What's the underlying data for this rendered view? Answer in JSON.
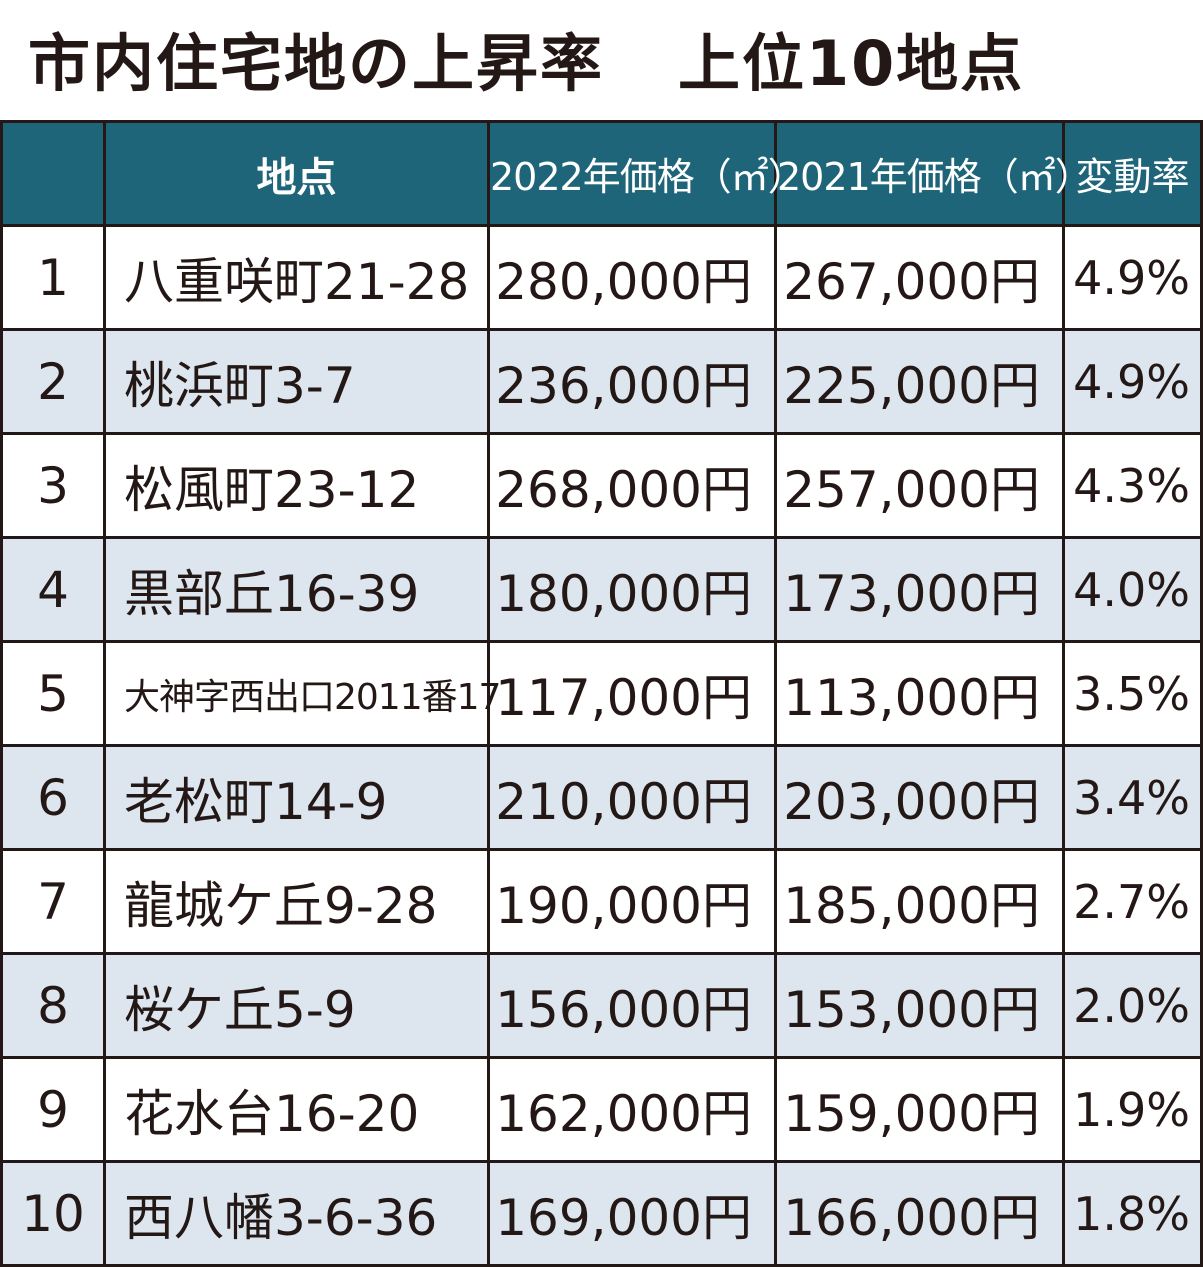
{
  "title_main": "市内住宅地の上昇率",
  "title_sub": "上位10地点",
  "chart_data": {
    "type": "table",
    "columns": [
      "",
      "地点",
      "2022年価格（㎡）",
      "2021年価格（㎡）",
      "変動率"
    ],
    "rows": [
      {
        "rank": "1",
        "location": "八重咲町21-28",
        "price_2022": "280,000円",
        "price_2021": "267,000円",
        "rate": "4.9%"
      },
      {
        "rank": "2",
        "location": "桃浜町3-7",
        "price_2022": "236,000円",
        "price_2021": "225,000円",
        "rate": "4.9%"
      },
      {
        "rank": "3",
        "location": "松風町23-12",
        "price_2022": "268,000円",
        "price_2021": "257,000円",
        "rate": "4.3%"
      },
      {
        "rank": "4",
        "location": "黒部丘16-39",
        "price_2022": "180,000円",
        "price_2021": "173,000円",
        "rate": "4.0%"
      },
      {
        "rank": "5",
        "location": "大神字西出口2011番17",
        "price_2022": "117,000円",
        "price_2021": "113,000円",
        "rate": "3.5%"
      },
      {
        "rank": "6",
        "location": "老松町14-9",
        "price_2022": "210,000円",
        "price_2021": "203,000円",
        "rate": "3.4%"
      },
      {
        "rank": "7",
        "location": "龍城ケ丘9-28",
        "price_2022": "190,000円",
        "price_2021": "185,000円",
        "rate": "2.7%"
      },
      {
        "rank": "8",
        "location": "桜ケ丘5-9",
        "price_2022": "156,000円",
        "price_2021": "153,000円",
        "rate": "2.0%"
      },
      {
        "rank": "9",
        "location": "花水台16-20",
        "price_2022": "162,000円",
        "price_2021": "159,000円",
        "rate": "1.9%"
      },
      {
        "rank": "10",
        "location": "西八幡3-6-36",
        "price_2022": "169,000円",
        "price_2021": "166,000円",
        "rate": "1.8%"
      }
    ]
  },
  "colors": {
    "header_bg": "#1f6579",
    "stripe_bg": "#dde6ee",
    "border": "#231815",
    "text": "#231815"
  }
}
